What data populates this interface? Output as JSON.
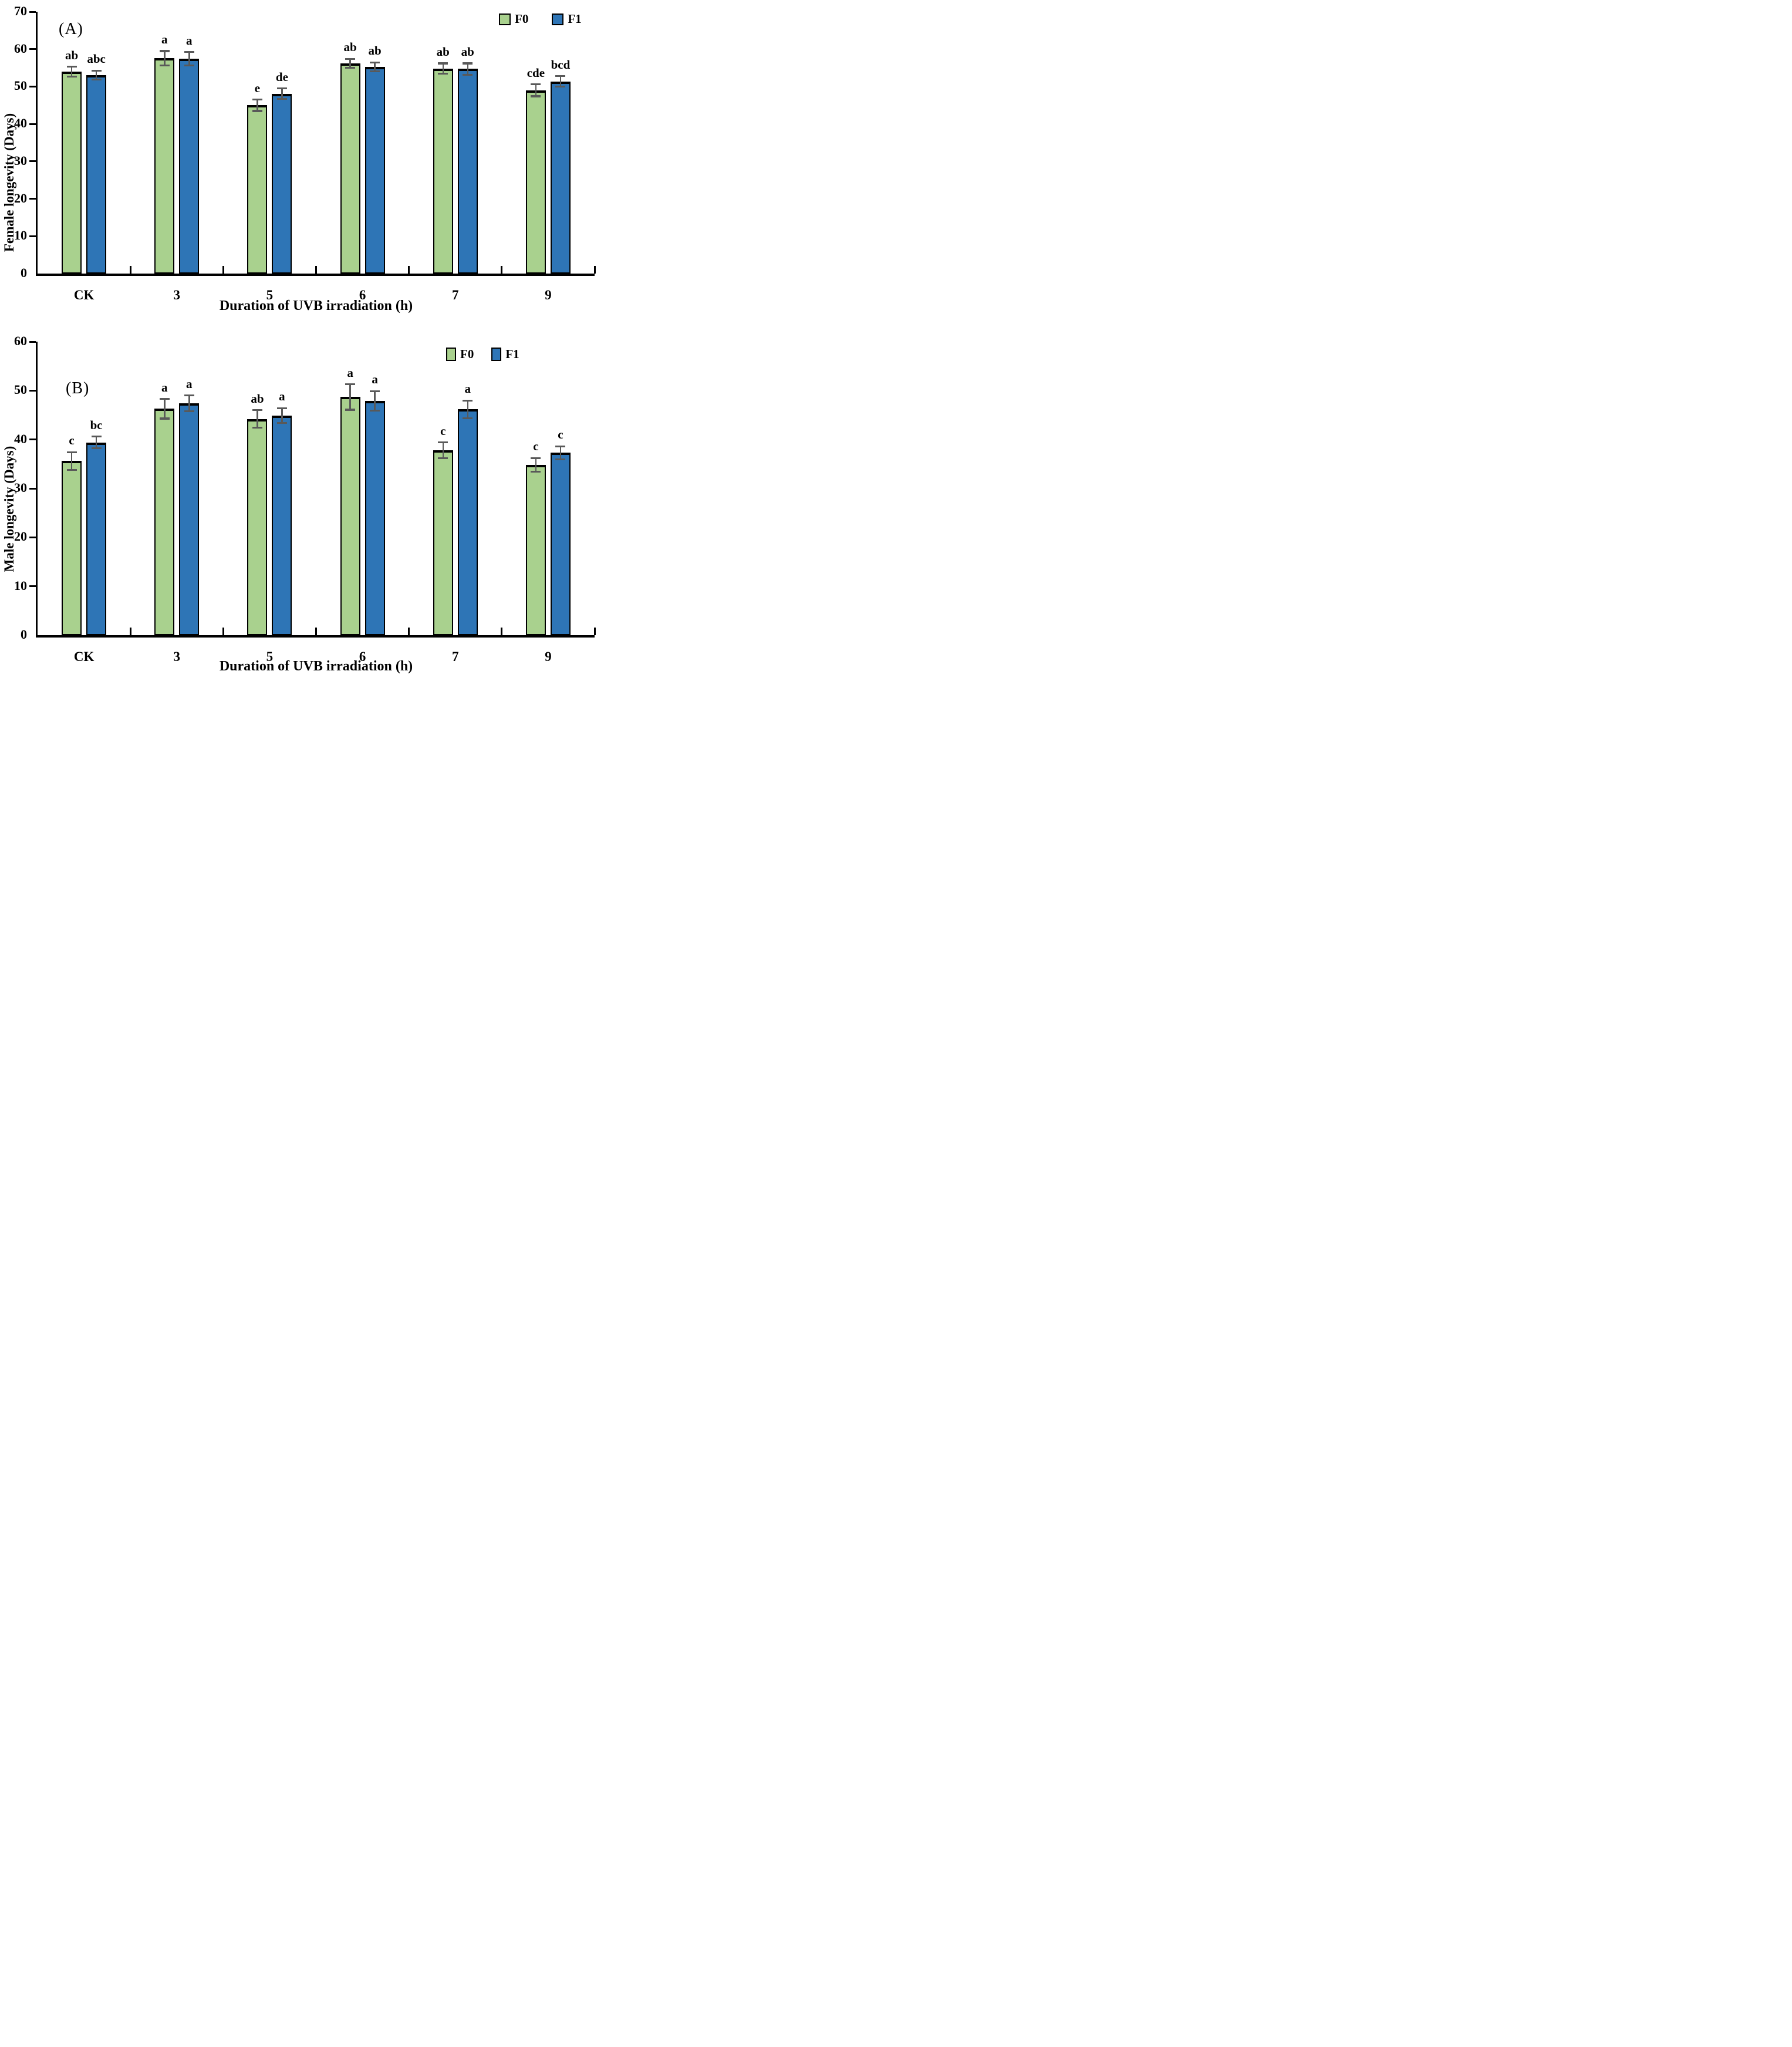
{
  "styles": {
    "f0_color": "#a9d18e",
    "f1_color": "#2e75b6",
    "bar_border_color": "#000000",
    "error_bar_color": "#595959",
    "axis_color": "#000000",
    "background": "#ffffff"
  },
  "chart_data": [
    {
      "type": "bar",
      "panel_label": "(A)",
      "xlabel": "Duration of UVB irradiation (h)",
      "ylabel": "Female longevity (Days)",
      "categories": [
        "CK",
        "3",
        "5",
        "6",
        "7",
        "9"
      ],
      "ylim": [
        0,
        70
      ],
      "ytick_step": 10,
      "grid": false,
      "legend_position": "top-right",
      "series": [
        {
          "name": "F0",
          "color": "#a9d18e",
          "values": [
            54.0,
            57.6,
            45.0,
            56.2,
            54.8,
            49.0
          ],
          "errors": [
            1.3,
            1.9,
            1.5,
            1.2,
            1.4,
            1.6
          ],
          "sig_letters": [
            "ab",
            "a",
            "e",
            "ab",
            "ab",
            "cde"
          ]
        },
        {
          "name": "F1",
          "color": "#2e75b6",
          "values": [
            53.1,
            57.4,
            48.1,
            55.3,
            54.7,
            51.4
          ],
          "errors": [
            1.2,
            1.8,
            1.4,
            1.2,
            1.5,
            1.4
          ],
          "sig_letters": [
            "abc",
            "a",
            "de",
            "ab",
            "ab",
            "bcd"
          ]
        }
      ]
    },
    {
      "type": "bar",
      "panel_label": "(B)",
      "xlabel": "Duration of UVB irradiation (h)",
      "ylabel": "Male longevity (Days)",
      "categories": [
        "CK",
        "3",
        "5",
        "6",
        "7",
        "9"
      ],
      "ylim": [
        0,
        60
      ],
      "ytick_step": 10,
      "grid": false,
      "legend_position": "top-right",
      "series": [
        {
          "name": "F0",
          "color": "#a9d18e",
          "values": [
            35.6,
            46.3,
            44.2,
            48.7,
            37.8,
            34.8
          ],
          "errors": [
            1.8,
            2.0,
            1.8,
            2.6,
            1.6,
            1.4
          ],
          "sig_letters": [
            "c",
            "a",
            "ab",
            "a",
            "c",
            "c"
          ]
        },
        {
          "name": "F1",
          "color": "#2e75b6",
          "values": [
            39.4,
            47.4,
            44.9,
            47.9,
            46.2,
            37.3
          ],
          "errors": [
            1.2,
            1.6,
            1.5,
            2.0,
            1.8,
            1.3
          ],
          "sig_letters": [
            "bc",
            "a",
            "a",
            "a",
            "a",
            "c"
          ]
        }
      ]
    }
  ]
}
